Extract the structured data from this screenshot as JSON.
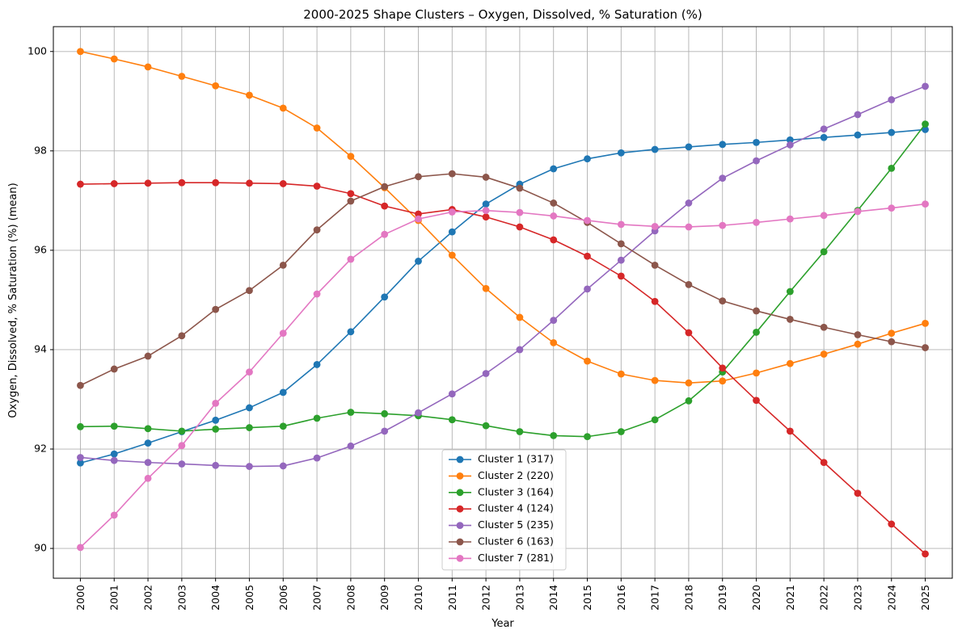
{
  "chart_data": {
    "type": "line",
    "title": "2000-2025 Shape Clusters – Oxygen, Dissolved, % Saturation (%)",
    "xlabel": "Year",
    "ylabel": "Oxygen, Dissolved, % Saturation (%) (mean)",
    "x": [
      2000,
      2001,
      2002,
      2003,
      2004,
      2005,
      2006,
      2007,
      2008,
      2009,
      2010,
      2011,
      2012,
      2013,
      2014,
      2015,
      2016,
      2017,
      2018,
      2019,
      2020,
      2021,
      2022,
      2023,
      2024,
      2025
    ],
    "xlim": [
      1999.2,
      2025.8
    ],
    "ylim": [
      89.4,
      100.5
    ],
    "yticks": [
      90,
      92,
      94,
      96,
      98,
      100
    ],
    "grid": true,
    "legend_position": "lower-center",
    "series": [
      {
        "name": "Cluster 1 (317)",
        "color": "#1f77b4",
        "values": [
          91.72,
          91.9,
          92.12,
          92.35,
          92.58,
          92.83,
          93.14,
          93.7,
          94.36,
          95.06,
          95.78,
          96.37,
          96.93,
          97.33,
          97.64,
          97.84,
          97.96,
          98.03,
          98.08,
          98.13,
          98.17,
          98.22,
          98.27,
          98.32,
          98.37,
          98.43
        ]
      },
      {
        "name": "Cluster 2 (220)",
        "color": "#ff7f0e",
        "values": [
          100.0,
          99.85,
          99.69,
          99.5,
          99.31,
          99.12,
          98.86,
          98.46,
          97.89,
          97.26,
          96.6,
          95.9,
          95.23,
          94.65,
          94.14,
          93.77,
          93.51,
          93.38,
          93.33,
          93.37,
          93.53,
          93.72,
          93.91,
          94.11,
          94.33,
          94.53
        ]
      },
      {
        "name": "Cluster 3 (164)",
        "color": "#2ca02c",
        "values": [
          92.45,
          92.46,
          92.41,
          92.36,
          92.4,
          92.43,
          92.46,
          92.62,
          92.74,
          92.71,
          92.67,
          92.59,
          92.47,
          92.35,
          92.27,
          92.25,
          92.35,
          92.59,
          92.97,
          93.55,
          94.35,
          95.17,
          95.97,
          96.8,
          97.65,
          98.54
        ]
      },
      {
        "name": "Cluster 4 (124)",
        "color": "#d62728",
        "values": [
          97.33,
          97.34,
          97.35,
          97.36,
          97.36,
          97.35,
          97.34,
          97.29,
          97.14,
          96.89,
          96.73,
          96.82,
          96.67,
          96.47,
          96.21,
          95.88,
          95.48,
          94.97,
          94.34,
          93.63,
          92.98,
          92.36,
          91.73,
          91.11,
          90.49,
          89.89
        ]
      },
      {
        "name": "Cluster 5 (235)",
        "color": "#9467bd",
        "values": [
          91.83,
          91.77,
          91.73,
          91.7,
          91.67,
          91.65,
          91.66,
          91.82,
          92.06,
          92.36,
          92.73,
          93.11,
          93.52,
          94.0,
          94.59,
          95.22,
          95.8,
          96.39,
          96.95,
          97.45,
          97.8,
          98.12,
          98.44,
          98.73,
          99.03,
          99.3
        ]
      },
      {
        "name": "Cluster 6 (163)",
        "color": "#8c564b",
        "values": [
          93.28,
          93.61,
          93.87,
          94.28,
          94.81,
          95.19,
          95.7,
          96.41,
          96.99,
          97.28,
          97.48,
          97.54,
          97.47,
          97.25,
          96.95,
          96.56,
          96.13,
          95.7,
          95.31,
          94.98,
          94.78,
          94.61,
          94.45,
          94.3,
          94.16,
          94.04
        ]
      },
      {
        "name": "Cluster 7 (281)",
        "color": "#e377c2",
        "values": [
          90.02,
          90.67,
          91.41,
          92.07,
          92.92,
          93.55,
          94.33,
          95.12,
          95.82,
          96.32,
          96.63,
          96.77,
          96.8,
          96.76,
          96.69,
          96.6,
          96.52,
          96.48,
          96.47,
          96.5,
          96.56,
          96.63,
          96.7,
          96.78,
          96.85,
          96.93
        ]
      }
    ]
  }
}
